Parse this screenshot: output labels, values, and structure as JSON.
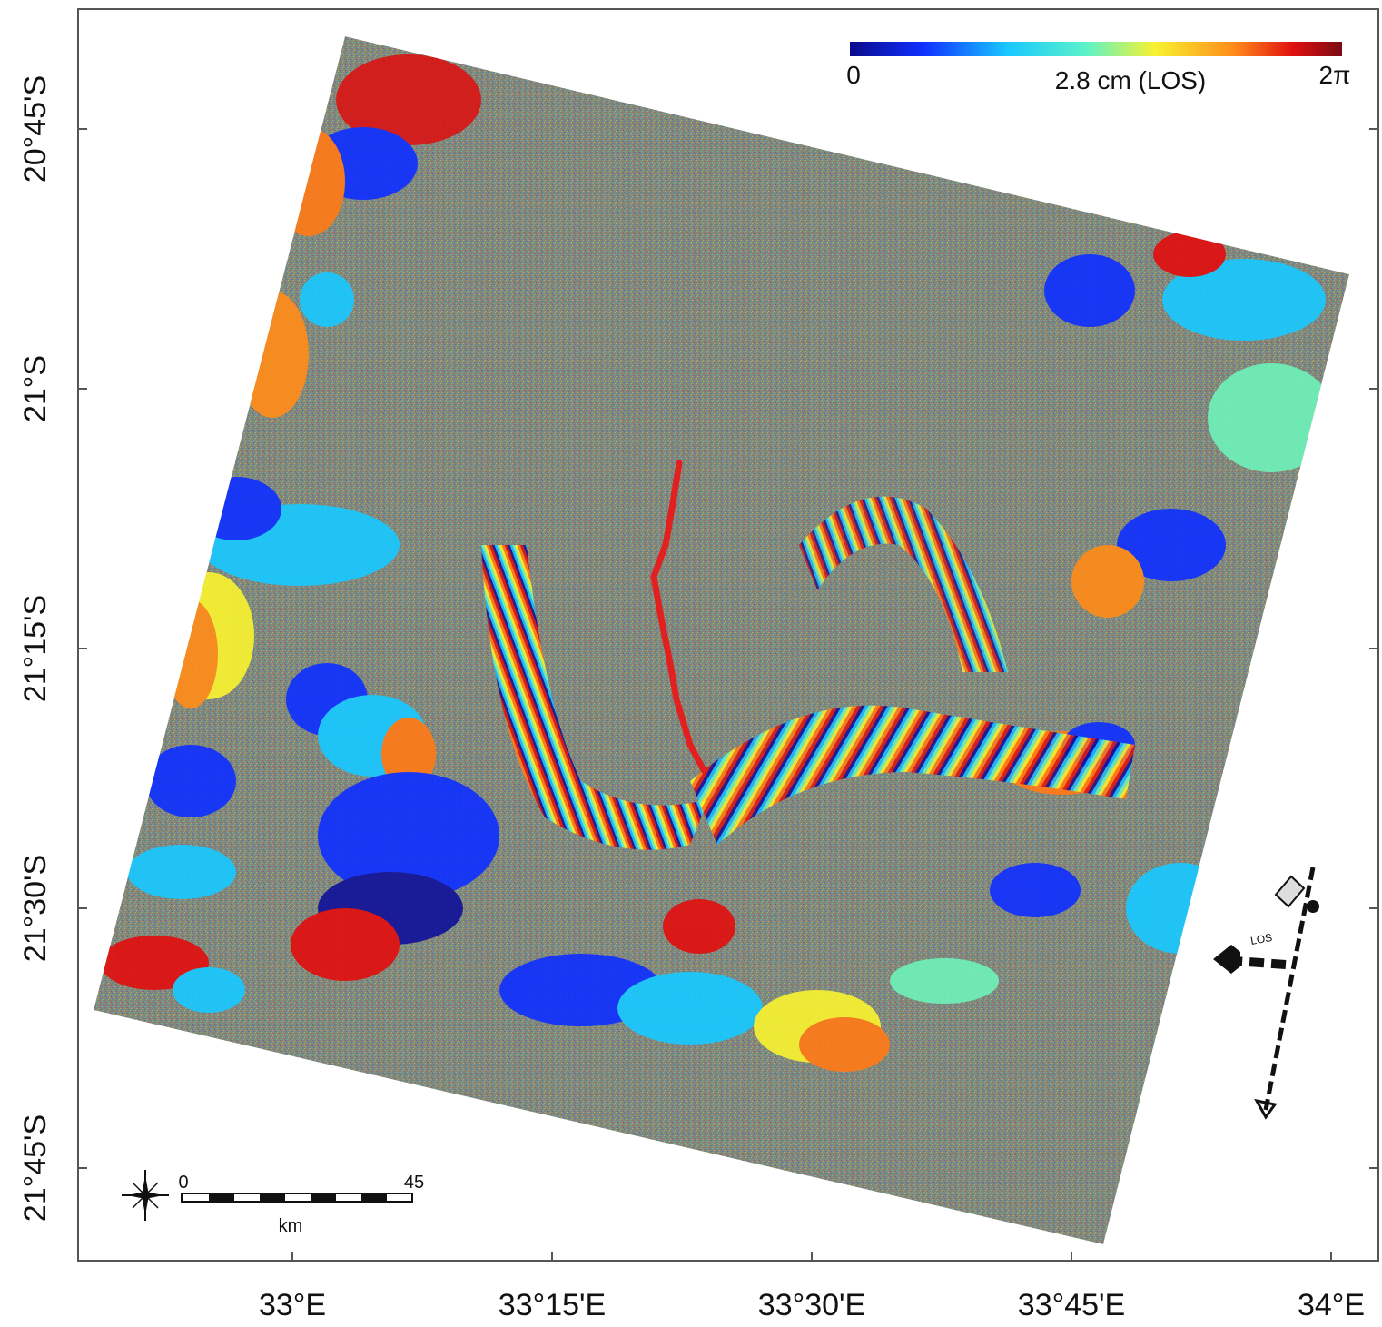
{
  "map": {
    "colorbar": {
      "min_label": "0",
      "center_label": "2.8 cm (LOS)",
      "max_label": "2π",
      "colors": [
        "#0a0a8c",
        "#1030ff",
        "#19c8ff",
        "#5cf2c8",
        "#f8f230",
        "#ff8c1a",
        "#e01010",
        "#7a0a14"
      ]
    },
    "lat_ticks": [
      "20°45'S",
      "21°S",
      "21°15'S",
      "21°30'S",
      "21°45'S"
    ],
    "lon_ticks": [
      "33°E",
      "33°15'E",
      "33°30'E",
      "33°45'E",
      "34°E"
    ],
    "scale_bar": {
      "start": "0",
      "end": "45",
      "unit": "km"
    },
    "los_label": "LOS",
    "fault_color": "#e32020",
    "noise_color": "#7e8a7f"
  }
}
